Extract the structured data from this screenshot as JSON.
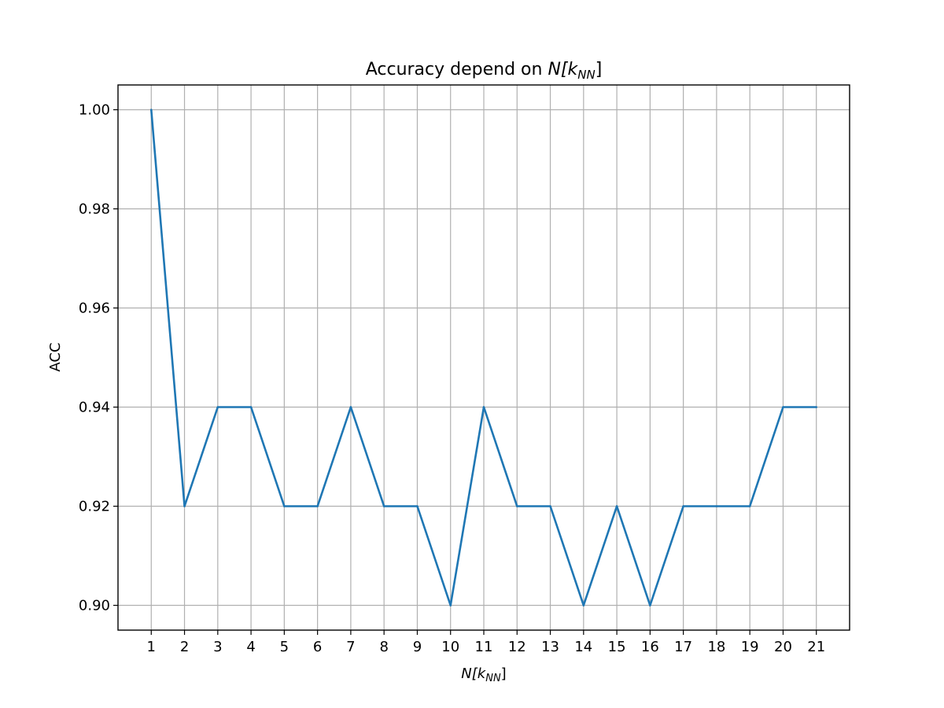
{
  "chart_data": {
    "type": "line",
    "title": "Accuracy depend on ",
    "title_math": {
      "base": "N[k",
      "sub": "NN",
      "close": "]"
    },
    "xlabel": "",
    "xlabel_math": {
      "base": "N[k",
      "sub": "NN",
      "close": "]"
    },
    "ylabel": "ACC",
    "x": [
      1,
      2,
      3,
      4,
      5,
      6,
      7,
      8,
      9,
      10,
      11,
      12,
      13,
      14,
      15,
      16,
      17,
      18,
      19,
      20,
      21
    ],
    "series": [
      {
        "values": [
          1.0,
          0.92,
          0.94,
          0.94,
          0.92,
          0.92,
          0.94,
          0.92,
          0.92,
          0.9,
          0.94,
          0.92,
          0.92,
          0.9,
          0.92,
          0.9,
          0.92,
          0.92,
          0.92,
          0.94,
          0.94
        ],
        "color": "#1f77b4"
      }
    ],
    "xticks": [
      "1",
      "2",
      "3",
      "4",
      "5",
      "6",
      "7",
      "8",
      "9",
      "10",
      "11",
      "12",
      "13",
      "14",
      "15",
      "16",
      "17",
      "18",
      "19",
      "20",
      "21"
    ],
    "yticks": [
      "0.90",
      "0.92",
      "0.94",
      "0.96",
      "0.98",
      "1.00"
    ],
    "xlim": [
      0,
      22
    ],
    "ylim": [
      0.895,
      1.005
    ],
    "grid": true,
    "legend": false
  }
}
